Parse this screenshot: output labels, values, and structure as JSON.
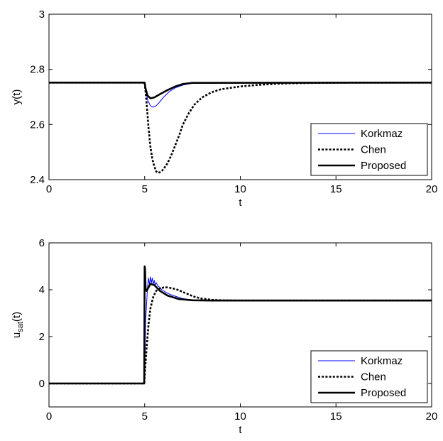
{
  "chart_data": [
    {
      "type": "line",
      "xlabel": "t",
      "ylabel": "y(t)",
      "xlim": [
        0,
        20
      ],
      "ylim": [
        2.4,
        3.0
      ],
      "xticks": [
        0,
        5,
        10,
        15,
        20
      ],
      "yticks": [
        2.4,
        2.6,
        2.8,
        3.0
      ],
      "ytick_labels": [
        "2.4",
        "2.6",
        "2.8",
        "3"
      ],
      "grid": false,
      "legend_position": "bottom-right",
      "series": [
        {
          "name": "Korkmaz",
          "color": "#0000ff",
          "style": "solid-thin",
          "x": [
            0,
            5.0,
            5.05,
            5.15,
            5.3,
            5.45,
            5.6,
            5.8,
            6.0,
            6.3,
            6.6,
            7.0,
            7.5,
            8.0,
            20
          ],
          "y": [
            2.752,
            2.752,
            2.732,
            2.69,
            2.668,
            2.663,
            2.668,
            2.683,
            2.7,
            2.72,
            2.733,
            2.743,
            2.75,
            2.752,
            2.752
          ]
        },
        {
          "name": "Chen",
          "color": "#000000",
          "style": "dotted-thick",
          "x": [
            0,
            5.0,
            5.1,
            5.2,
            5.3,
            5.4,
            5.5,
            5.6,
            5.7,
            5.8,
            5.9,
            6.0,
            6.2,
            6.4,
            6.6,
            6.8,
            7.0,
            7.3,
            7.6,
            8.0,
            8.5,
            9.0,
            10.0,
            11.0,
            12.0,
            13.0,
            14.0,
            16.0,
            20
          ],
          "y": [
            2.752,
            2.752,
            2.68,
            2.59,
            2.52,
            2.475,
            2.45,
            2.43,
            2.425,
            2.427,
            2.432,
            2.44,
            2.46,
            2.49,
            2.525,
            2.56,
            2.6,
            2.64,
            2.672,
            2.698,
            2.717,
            2.728,
            2.738,
            2.744,
            2.748,
            2.75,
            2.751,
            2.752,
            2.752
          ]
        },
        {
          "name": "Proposed",
          "color": "#000000",
          "style": "solid-thick",
          "x": [
            0,
            5.0,
            5.05,
            5.15,
            5.3,
            5.5,
            5.8,
            6.2,
            6.6,
            7.0,
            7.5,
            20
          ],
          "y": [
            2.752,
            2.752,
            2.73,
            2.705,
            2.695,
            2.698,
            2.71,
            2.725,
            2.738,
            2.747,
            2.751,
            2.752
          ]
        }
      ]
    },
    {
      "type": "line",
      "xlabel": "t",
      "ylabel": "u",
      "ylabel_subscript": "sat",
      "ylabel_suffix": "(t)",
      "xlim": [
        0,
        20
      ],
      "ylim": [
        -1,
        6
      ],
      "xticks": [
        0,
        5,
        10,
        15,
        20
      ],
      "yticks": [
        0,
        2,
        4,
        6
      ],
      "ytick_labels": [
        "0",
        "2",
        "4",
        "6"
      ],
      "grid": false,
      "legend_position": "bottom-right",
      "series": [
        {
          "name": "Korkmaz",
          "color": "#0000ff",
          "style": "solid-thin",
          "x": [
            0,
            4.98,
            5.0,
            5.05,
            5.1,
            5.15,
            5.2,
            5.25,
            5.3,
            5.35,
            5.4,
            5.45,
            5.5,
            5.55,
            5.6,
            5.7,
            5.8,
            5.9,
            6.0,
            6.2,
            6.5,
            7.0,
            7.5,
            8.0,
            9.0,
            20
          ],
          "y": [
            0,
            0,
            0.2,
            2.6,
            3.4,
            4.1,
            4.5,
            4.2,
            4.55,
            4.3,
            4.5,
            4.25,
            4.4,
            4.2,
            4.3,
            4.15,
            4.1,
            4.0,
            3.95,
            3.85,
            3.75,
            3.62,
            3.57,
            3.55,
            3.54,
            3.54
          ]
        },
        {
          "name": "Chen",
          "color": "#000000",
          "style": "dotted-thick",
          "x": [
            0,
            4.98,
            5.0,
            5.1,
            5.2,
            5.3,
            5.45,
            5.6,
            5.8,
            6.0,
            6.2,
            6.5,
            6.8,
            7.0,
            7.3,
            7.6,
            8.0,
            8.5,
            9.0,
            10.0,
            20
          ],
          "y": [
            0,
            0,
            0.3,
            1.5,
            2.5,
            3.2,
            3.7,
            3.95,
            4.05,
            4.1,
            4.1,
            4.05,
            3.98,
            3.9,
            3.8,
            3.7,
            3.62,
            3.57,
            3.55,
            3.54,
            3.54
          ]
        },
        {
          "name": "Proposed",
          "color": "#000000",
          "style": "solid-thick",
          "x": [
            0,
            4.98,
            5.0,
            5.02,
            5.05,
            5.1,
            5.2,
            5.3,
            5.5,
            5.8,
            6.2,
            6.8,
            7.5,
            8.5,
            20
          ],
          "y": [
            0,
            0,
            5.0,
            4.9,
            4.0,
            3.95,
            4.1,
            4.25,
            4.2,
            3.95,
            3.75,
            3.6,
            3.55,
            3.54,
            3.54
          ]
        }
      ]
    }
  ]
}
